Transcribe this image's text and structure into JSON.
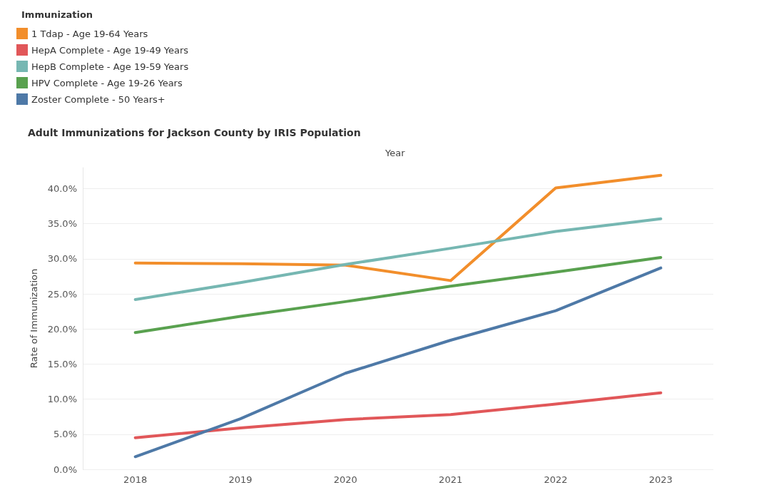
{
  "chart_data": {
    "type": "line",
    "title": "Adult Immunizations for Jackson County by IRIS Population",
    "xlabel": "Year",
    "ylabel": "Rate of Immunization",
    "legend_title": "Immunization",
    "categories": [
      "2018",
      "2019",
      "2020",
      "2021",
      "2022",
      "2023"
    ],
    "series": [
      {
        "name": "1 Tdap - Age 19-64 Years",
        "color": "#f28e2b",
        "values": [
          29.4,
          29.3,
          29.1,
          26.9,
          40.1,
          41.9
        ]
      },
      {
        "name": "HepA Complete - Age 19-49 Years",
        "color": "#e15759",
        "values": [
          4.5,
          5.9,
          7.1,
          7.8,
          9.3,
          10.9
        ]
      },
      {
        "name": "HepB Complete - Age 19-59 Years",
        "color": "#76b7b2",
        "values": [
          24.2,
          26.6,
          29.2,
          31.5,
          33.9,
          35.7
        ]
      },
      {
        "name": "HPV Complete - Age 19-26 Years",
        "color": "#59a14f",
        "values": [
          19.5,
          21.8,
          23.9,
          26.1,
          28.1,
          30.2
        ]
      },
      {
        "name": "Zoster Complete - 50 Years+",
        "color": "#4e79a7",
        "values": [
          1.8,
          7.2,
          13.7,
          18.4,
          22.6,
          28.7
        ]
      }
    ],
    "ylim": [
      0,
      43
    ],
    "yticks": [
      {
        "value": 0,
        "label": "0.0%"
      },
      {
        "value": 5,
        "label": "5.0%"
      },
      {
        "value": 10,
        "label": "10.0%"
      },
      {
        "value": 15,
        "label": "15.0%"
      },
      {
        "value": 20,
        "label": "20.0%"
      },
      {
        "value": 25,
        "label": "25.0%"
      },
      {
        "value": 30,
        "label": "30.0%"
      },
      {
        "value": 35,
        "label": "35.0%"
      },
      {
        "value": 40,
        "label": "40.0%"
      }
    ],
    "grid": "y",
    "legend": "top left",
    "marker": "none",
    "line_style": "solid"
  }
}
